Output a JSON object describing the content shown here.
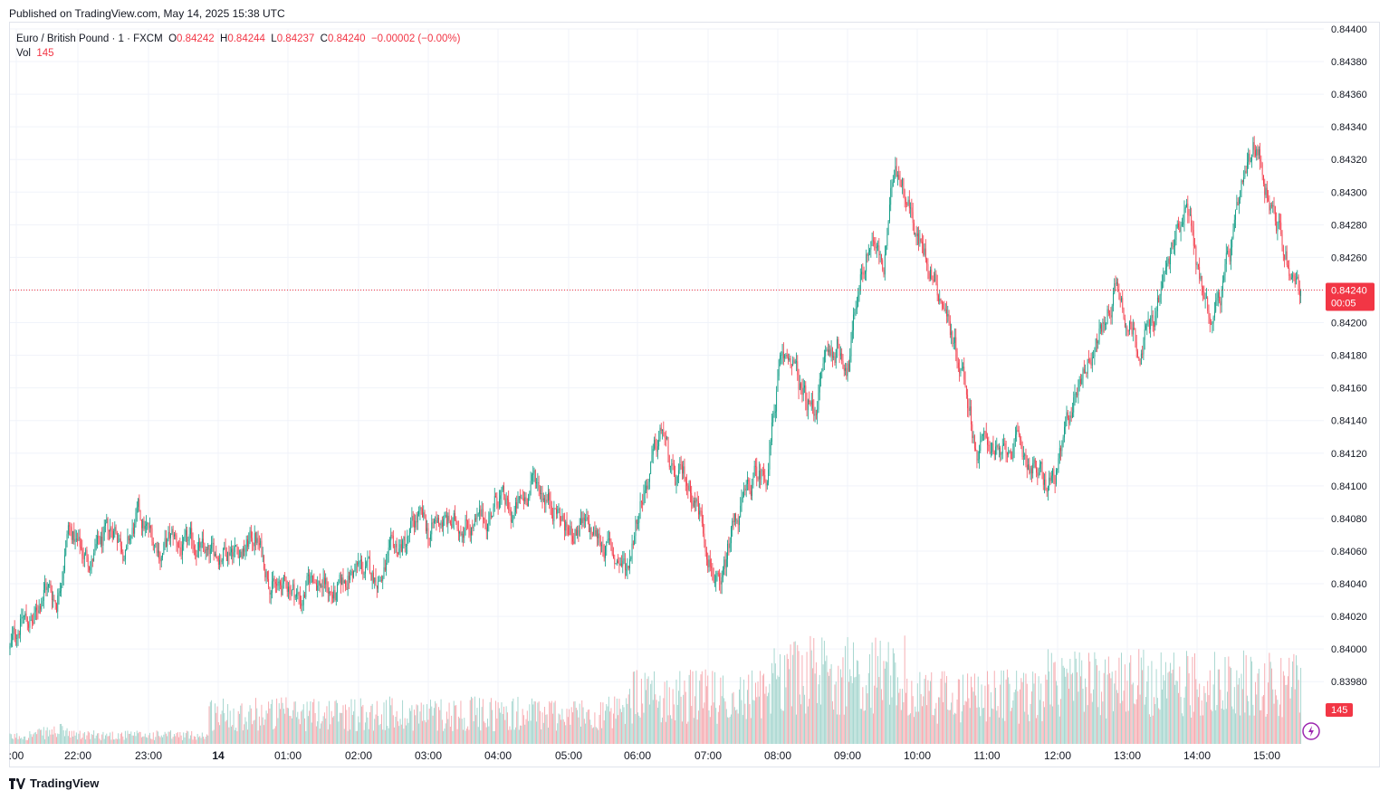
{
  "header": {
    "published": "Published on TradingView.com, May 14, 2025 15:38 UTC"
  },
  "legend": {
    "symbol": "Euro / British Pound · 1 · FXCM",
    "o_label": "O",
    "o": "0.84242",
    "h_label": "H",
    "h": "0.84244",
    "l_label": "L",
    "l": "0.84237",
    "c_label": "C",
    "c": "0.84240",
    "change": "−0.00002 (−0.00%)",
    "vol_label": "Vol",
    "vol": "145"
  },
  "price_badge": {
    "price": "0.84240",
    "countdown": "00:05",
    "color": "#f23645"
  },
  "volume_badge": {
    "value": "145",
    "color": "#f23645"
  },
  "footer": {
    "brand": "TradingView"
  },
  "colors": {
    "up": "#089981",
    "down": "#f23645",
    "vol_up": "#9fd3cb",
    "vol_down": "#f5a5ab",
    "grid": "#f0f3fa"
  },
  "chart_data": {
    "type": "candlestick",
    "title": "Euro / British Pound · 1 · FXCM",
    "ylim": [
      0.8396,
      0.844
    ],
    "y_ticks": [
      "0.84400",
      "0.84380",
      "0.84360",
      "0.84340",
      "0.84320",
      "0.84300",
      "0.84280",
      "0.84260",
      "0.84220",
      "0.84200",
      "0.84180",
      "0.84160",
      "0.84140",
      "0.84120",
      "0.84100",
      "0.84080",
      "0.84060",
      "0.84040",
      "0.84020",
      "0.84000",
      "0.83980"
    ],
    "x_ticks": [
      ":00",
      "22:00",
      "23:00",
      "14",
      "01:00",
      "02:00",
      "03:00",
      "04:00",
      "05:00",
      "06:00",
      "07:00",
      "08:00",
      "09:00",
      "10:00",
      "11:00",
      "12:00",
      "13:00",
      "14:00",
      "15:00"
    ],
    "last_price": 0.8424,
    "path_close": [
      [
        "21:10",
        0.8402
      ],
      [
        "21:20",
        0.8404
      ],
      [
        "21:30",
        0.84035
      ],
      [
        "21:40",
        0.8406
      ],
      [
        "21:50",
        0.8405
      ],
      [
        "22:00",
        0.84095
      ],
      [
        "22:10",
        0.8408
      ],
      [
        "22:20",
        0.84075
      ],
      [
        "22:30",
        0.84085
      ],
      [
        "22:40",
        0.84095
      ],
      [
        "22:50",
        0.8408
      ],
      [
        "23:00",
        0.841
      ],
      [
        "23:10",
        0.8409
      ],
      [
        "23:20",
        0.8408
      ],
      [
        "23:30",
        0.84088
      ],
      [
        "23:40",
        0.8408
      ],
      [
        "23:50",
        0.84085
      ],
      [
        "00:00",
        0.84075
      ],
      [
        "00:10",
        0.8408
      ],
      [
        "00:20",
        0.84085
      ],
      [
        "00:30",
        0.8408
      ],
      [
        "00:40",
        0.8409
      ],
      [
        "00:50",
        0.8407
      ],
      [
        "01:00",
        0.84055
      ],
      [
        "01:10",
        0.8406
      ],
      [
        "01:20",
        0.8405
      ],
      [
        "01:30",
        0.84065
      ],
      [
        "01:40",
        0.8406
      ],
      [
        "01:50",
        0.8405
      ],
      [
        "02:00",
        0.84065
      ],
      [
        "02:10",
        0.8407
      ],
      [
        "02:20",
        0.84065
      ],
      [
        "02:30",
        0.84065
      ],
      [
        "02:40",
        0.8408
      ],
      [
        "02:50",
        0.84085
      ],
      [
        "03:00",
        0.841
      ],
      [
        "03:10",
        0.8409
      ],
      [
        "03:20",
        0.841
      ],
      [
        "03:30",
        0.84095
      ],
      [
        "03:40",
        0.841
      ],
      [
        "03:50",
        0.84095
      ],
      [
        "04:00",
        0.841
      ],
      [
        "04:10",
        0.84115
      ],
      [
        "04:20",
        0.841
      ],
      [
        "04:30",
        0.8411
      ],
      [
        "04:40",
        0.84125
      ],
      [
        "04:50",
        0.84115
      ],
      [
        "05:00",
        0.84105
      ],
      [
        "05:10",
        0.8409
      ],
      [
        "05:20",
        0.84095
      ],
      [
        "05:30",
        0.8409
      ],
      [
        "05:40",
        0.84085
      ],
      [
        "05:50",
        0.84075
      ],
      [
        "06:00",
        0.8407
      ],
      [
        "06:10",
        0.8411
      ],
      [
        "06:20",
        0.8413
      ],
      [
        "06:30",
        0.84155
      ],
      [
        "06:40",
        0.8412
      ],
      [
        "06:50",
        0.84125
      ],
      [
        "07:00",
        0.8411
      ],
      [
        "07:10",
        0.8408
      ],
      [
        "07:20",
        0.8405
      ],
      [
        "07:30",
        0.84095
      ],
      [
        "07:40",
        0.8411
      ],
      [
        "07:50",
        0.84125
      ],
      [
        "08:00",
        0.8413
      ],
      [
        "08:10",
        0.8419
      ],
      [
        "08:20",
        0.842
      ],
      [
        "08:30",
        0.84175
      ],
      [
        "08:40",
        0.84165
      ],
      [
        "08:50",
        0.842
      ],
      [
        "09:00",
        0.84205
      ],
      [
        "09:10",
        0.84195
      ],
      [
        "09:20",
        0.8425
      ],
      [
        "09:30",
        0.84275
      ],
      [
        "09:40",
        0.8425
      ],
      [
        "09:50",
        0.8432
      ],
      [
        "10:00",
        0.843
      ],
      [
        "10:10",
        0.8427
      ],
      [
        "10:20",
        0.84255
      ],
      [
        "10:30",
        0.84235
      ],
      [
        "10:40",
        0.8421
      ],
      [
        "10:50",
        0.84185
      ],
      [
        "11:00",
        0.8414
      ],
      [
        "11:10",
        0.8415
      ],
      [
        "11:20",
        0.84135
      ],
      [
        "11:30",
        0.84145
      ],
      [
        "11:40",
        0.8414
      ],
      [
        "11:50",
        0.8413
      ],
      [
        "12:00",
        0.8412
      ],
      [
        "12:10",
        0.8413
      ],
      [
        "12:20",
        0.84165
      ],
      [
        "12:30",
        0.8419
      ],
      [
        "12:40",
        0.84205
      ],
      [
        "12:50",
        0.8422
      ],
      [
        "13:00",
        0.84245
      ],
      [
        "13:10",
        0.8422
      ],
      [
        "13:20",
        0.84205
      ],
      [
        "13:30",
        0.8422
      ],
      [
        "13:40",
        0.84245
      ],
      [
        "13:50",
        0.8427
      ],
      [
        "14:00",
        0.843
      ],
      [
        "14:10",
        0.8425
      ],
      [
        "14:20",
        0.84225
      ],
      [
        "14:30",
        0.8424
      ],
      [
        "14:40",
        0.8427
      ],
      [
        "14:50",
        0.84305
      ],
      [
        "15:00",
        0.8433
      ],
      [
        "15:10",
        0.843
      ],
      [
        "15:20",
        0.84275
      ],
      [
        "15:30",
        0.8425
      ],
      [
        "15:38",
        0.8424
      ]
    ],
    "volume_range": [
      0,
      200
    ]
  }
}
